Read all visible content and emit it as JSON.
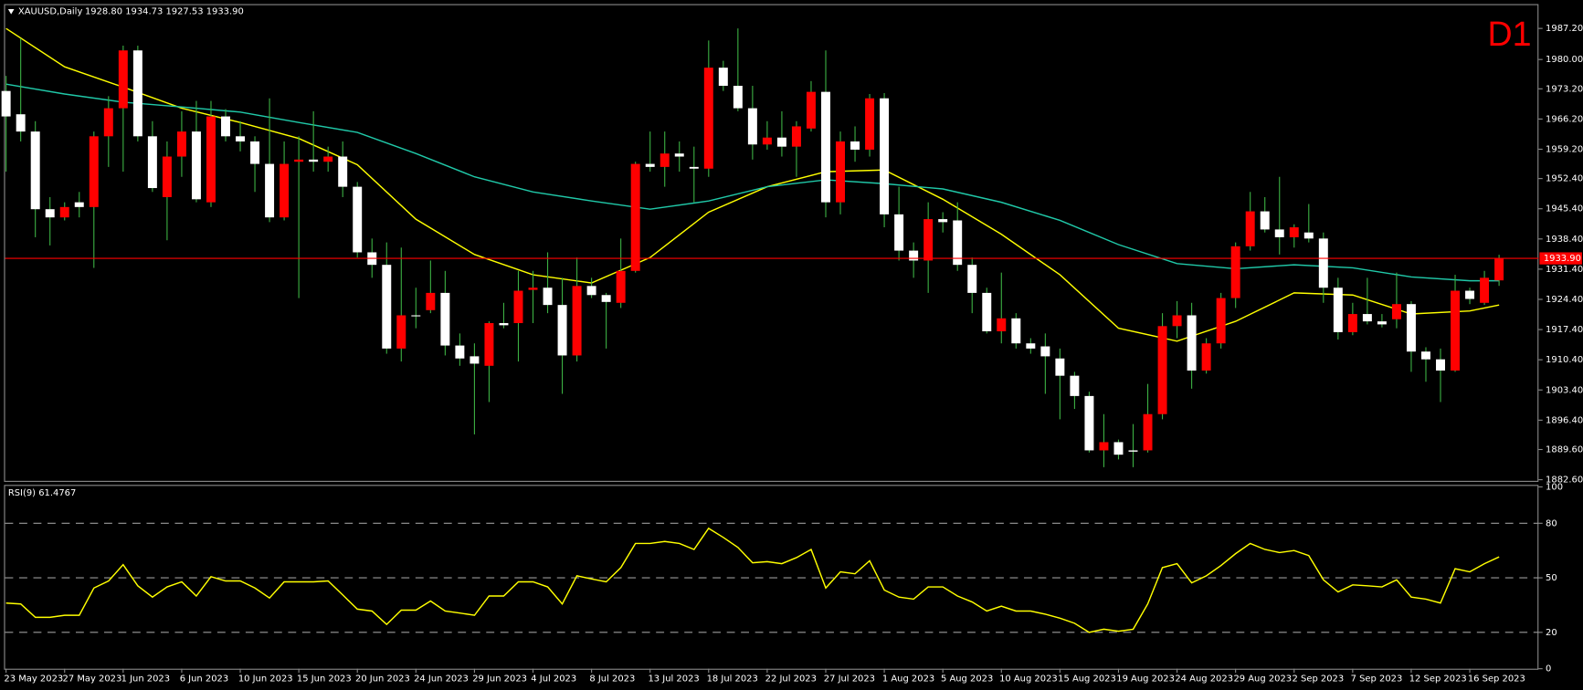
{
  "chart_data": [
    {
      "type": "candlestick",
      "title": "XAUUSD,Daily",
      "subtitle": "1928.80 1934.73 1927.53 1933.90",
      "timeframe": "D1",
      "categories": [
        "23 May 2023",
        null,
        null,
        null,
        "27 May 2023",
        null,
        null,
        null,
        "1 Jun 2023",
        null,
        null,
        null,
        "6 Jun 2023",
        null,
        null,
        null,
        "10 Jun 2023",
        null,
        null,
        null,
        "15 Jun 2023",
        null,
        null,
        null,
        "20 Jun 2023",
        null,
        null,
        null,
        "24 Jun 2023",
        null,
        null,
        null,
        "29 Jun 2023",
        null,
        null,
        null,
        "4 Jul 2023",
        null,
        null,
        null,
        "8 Jul 2023",
        null,
        null,
        null,
        "13 Jul 2023",
        null,
        null,
        null,
        "18 Jul 2023",
        null,
        null,
        null,
        "22 Jul 2023",
        null,
        null,
        null,
        "27 Jul 2023",
        null,
        null,
        null,
        "1 Aug 2023",
        null,
        null,
        null,
        "5 Aug 2023",
        null,
        null,
        null,
        "10 Aug 2023",
        null,
        null,
        null,
        "15 Aug 2023",
        null,
        null,
        null,
        "19 Aug 2023",
        null,
        null,
        null,
        "24 Aug 2023",
        null,
        null,
        null,
        "29 Aug 2023",
        null,
        null,
        null,
        "2 Sep 2023",
        null,
        null,
        null,
        "7 Sep 2023",
        null,
        null,
        null,
        "12 Sep 2023",
        null,
        null,
        null,
        "16 Sep 2023",
        null,
        null
      ],
      "open": [
        1972.7,
        1967.3,
        1963.3,
        1945.3,
        1943.4,
        1946.9,
        1945.8,
        1962.2,
        1968.7,
        1982.1,
        1962.2,
        1948.1,
        1957.5,
        1963.3,
        1946.9,
        1966.8,
        1962.2,
        1961.0,
        1955.8,
        1943.4,
        1956.3,
        1956.8,
        1956.3,
        1957.5,
        1950.5,
        1935.3,
        1932.4,
        1913.0,
        1920.7,
        1921.9,
        1925.9,
        1913.7,
        1911.2,
        1909.0,
        1918.9,
        1918.9,
        1926.6,
        1927.1,
        1923.1,
        1911.4,
        1927.5,
        1925.4,
        1923.6,
        1931.0,
        1955.8,
        1955.1,
        1958.2,
        1955.1,
        1954.7,
        1978.1,
        1973.9,
        1968.7,
        1960.3,
        1961.9,
        1959.8,
        1964.0,
        1972.5,
        1946.9,
        1961.0,
        1959.1,
        1971.0,
        1944.1,
        1935.7,
        1933.4,
        1943.0,
        1942.7,
        1932.4,
        1925.9,
        1917.0,
        1920.0,
        1914.2,
        1913.5,
        1910.7,
        1906.7,
        1902.0,
        1889.4,
        1891.3,
        1889.4,
        1889.4,
        1897.8,
        1918.2,
        1920.7,
        1907.9,
        1914.2,
        1924.7,
        1936.7,
        1944.8,
        1940.6,
        1938.8,
        1939.9,
        1938.5,
        1927.1,
        1916.8,
        1921.0,
        1919.3,
        1919.8,
        1923.3,
        1912.3,
        1910.5,
        1907.9,
        1926.4,
        1923.6,
        1928.8
      ],
      "high": [
        1976.2,
        1984.9,
        1965.7,
        1948.1,
        1946.9,
        1949.3,
        1963.3,
        1971.5,
        1983.2,
        1983.2,
        1965.7,
        1961.0,
        1968.0,
        1970.4,
        1970.4,
        1968.5,
        1965.7,
        1962.2,
        1971.0,
        1961.0,
        1962.2,
        1968.0,
        1959.8,
        1961.0,
        1951.6,
        1938.5,
        1937.6,
        1936.4,
        1927.1,
        1933.4,
        1931.0,
        1916.5,
        1914.2,
        1919.3,
        1923.6,
        1931.0,
        1931.0,
        1935.3,
        1929.4,
        1934.1,
        1929.4,
        1925.9,
        1938.5,
        1956.3,
        1963.3,
        1963.3,
        1961.0,
        1959.8,
        1984.4,
        1979.7,
        1987.2,
        1973.9,
        1965.7,
        1968.0,
        1965.7,
        1975.0,
        1982.1,
        1963.3,
        1964.5,
        1972.0,
        1972.2,
        1950.5,
        1937.6,
        1946.9,
        1944.6,
        1946.9,
        1934.1,
        1927.1,
        1930.6,
        1921.2,
        1915.4,
        1916.5,
        1913.0,
        1907.6,
        1903.0,
        1897.8,
        1891.9,
        1895.5,
        1904.8,
        1921.2,
        1924.0,
        1923.6,
        1915.4,
        1925.9,
        1937.6,
        1949.3,
        1948.1,
        1952.8,
        1941.8,
        1946.5,
        1939.9,
        1929.4,
        1923.6,
        1929.4,
        1921.0,
        1930.6,
        1924.0,
        1913.3,
        1913.0,
        1930.1,
        1927.1,
        1931.0,
        1934.73
      ],
      "low": [
        1954.0,
        1961.0,
        1938.8,
        1936.9,
        1942.7,
        1943.4,
        1931.7,
        1955.1,
        1954.0,
        1961.0,
        1949.3,
        1938.1,
        1952.8,
        1946.9,
        1945.8,
        1961.0,
        1958.7,
        1949.3,
        1942.3,
        1942.7,
        1924.7,
        1954.0,
        1954.0,
        1948.1,
        1934.1,
        1929.4,
        1911.8,
        1910.0,
        1917.7,
        1921.2,
        1911.4,
        1909.0,
        1893.1,
        1900.6,
        1917.7,
        1910.0,
        1918.9,
        1921.2,
        1902.5,
        1910.0,
        1924.7,
        1913.0,
        1922.4,
        1930.6,
        1954.0,
        1950.5,
        1954.0,
        1946.9,
        1952.8,
        1972.7,
        1968.0,
        1956.8,
        1959.1,
        1957.5,
        1952.8,
        1963.3,
        1943.4,
        1944.1,
        1956.3,
        1957.5,
        1941.1,
        1933.4,
        1929.4,
        1925.9,
        1939.9,
        1931.0,
        1921.2,
        1916.5,
        1914.2,
        1913.0,
        1911.8,
        1902.5,
        1896.6,
        1899.0,
        1888.9,
        1885.5,
        1887.3,
        1885.5,
        1888.9,
        1896.6,
        1915.4,
        1903.7,
        1907.2,
        1913.0,
        1922.4,
        1935.7,
        1939.9,
        1934.8,
        1936.4,
        1937.6,
        1923.6,
        1915.1,
        1916.1,
        1918.6,
        1917.9,
        1917.7,
        1907.6,
        1905.3,
        1900.6,
        1907.6,
        1923.3,
        1923.1,
        1927.53
      ],
      "close": [
        1966.8,
        1963.3,
        1945.3,
        1943.4,
        1945.8,
        1945.8,
        1962.2,
        1968.7,
        1982.1,
        1962.2,
        1950.2,
        1957.5,
        1963.3,
        1947.6,
        1966.8,
        1962.2,
        1961.0,
        1955.8,
        1943.4,
        1955.8,
        1956.8,
        1956.3,
        1957.5,
        1950.5,
        1935.3,
        1932.4,
        1913.0,
        1920.7,
        1920.5,
        1925.9,
        1913.7,
        1910.7,
        1909.5,
        1918.9,
        1918.4,
        1926.4,
        1927.1,
        1923.1,
        1911.4,
        1927.5,
        1925.4,
        1923.8,
        1931.0,
        1955.8,
        1955.1,
        1958.2,
        1957.5,
        1954.7,
        1978.1,
        1973.9,
        1968.7,
        1960.3,
        1961.9,
        1959.8,
        1964.5,
        1972.5,
        1946.9,
        1961.0,
        1959.1,
        1971.0,
        1944.1,
        1935.7,
        1933.4,
        1943.0,
        1942.3,
        1932.4,
        1925.9,
        1917.0,
        1920.0,
        1914.2,
        1913.0,
        1911.2,
        1906.7,
        1902.0,
        1889.4,
        1891.3,
        1888.4,
        1889.1,
        1897.8,
        1918.2,
        1920.7,
        1907.9,
        1914.2,
        1924.7,
        1936.7,
        1944.8,
        1940.6,
        1938.8,
        1941.1,
        1938.5,
        1927.1,
        1916.8,
        1921.0,
        1919.3,
        1918.6,
        1923.3,
        1912.3,
        1910.5,
        1907.9,
        1926.4,
        1924.5,
        1929.4,
        1933.9
      ],
      "up_color": "#ff0000",
      "down_color": "#ffffff",
      "wick_color": "#3cb043",
      "moving_averages": [
        {
          "color": "#ffff00",
          "x": [
            0,
            4,
            8,
            12,
            16,
            20,
            24,
            28,
            32,
            36,
            40,
            44,
            48,
            52,
            56,
            60,
            64,
            68,
            72,
            76,
            80,
            84,
            88,
            92,
            96,
            100,
            102
          ],
          "values": [
            1987.2,
            1978.3,
            1973.6,
            1968.7,
            1965.4,
            1961.7,
            1955.6,
            1943.0,
            1934.8,
            1930.1,
            1928.2,
            1934.1,
            1944.6,
            1950.5,
            1954.0,
            1954.4,
            1947.6,
            1939.5,
            1930.1,
            1917.7,
            1914.7,
            1919.3,
            1925.9,
            1925.4,
            1921.0,
            1921.7,
            1923.1
          ]
        },
        {
          "color": "#20c8a8",
          "x": [
            0,
            4,
            8,
            12,
            16,
            20,
            24,
            28,
            32,
            36,
            40,
            44,
            48,
            52,
            56,
            60,
            64,
            68,
            72,
            76,
            80,
            84,
            88,
            92,
            96,
            100,
            102
          ],
          "values": [
            1974.3,
            1972.0,
            1970.1,
            1969.0,
            1967.8,
            1965.4,
            1963.1,
            1958.2,
            1952.8,
            1949.3,
            1947.2,
            1945.3,
            1947.2,
            1950.5,
            1952.1,
            1951.2,
            1950.0,
            1946.9,
            1942.7,
            1937.1,
            1932.7,
            1931.5,
            1932.4,
            1931.7,
            1929.6,
            1928.7,
            1928.7
          ]
        }
      ],
      "last_price": {
        "value": 1933.9,
        "label": "1933.90"
      },
      "ylim": [
        1882.1,
        1992.6
      ],
      "yticks": [
        {
          "value": 1987.2,
          "label": "1987.20"
        },
        {
          "value": 1980.0,
          "label": "1980.00"
        },
        {
          "value": 1973.2,
          "label": "1973.20"
        },
        {
          "value": 1966.2,
          "label": "1966.20"
        },
        {
          "value": 1959.2,
          "label": "1959.20"
        },
        {
          "value": 1952.4,
          "label": "1952.40"
        },
        {
          "value": 1945.4,
          "label": "1945.40"
        },
        {
          "value": 1938.4,
          "label": "1938.40"
        },
        {
          "value": 1931.4,
          "label": "1931.40"
        },
        {
          "value": 1924.4,
          "label": "1924.40"
        },
        {
          "value": 1917.4,
          "label": "1917.40"
        },
        {
          "value": 1910.4,
          "label": "1910.40"
        },
        {
          "value": 1903.4,
          "label": "1903.40"
        },
        {
          "value": 1896.4,
          "label": "1896.40"
        },
        {
          "value": 1889.6,
          "label": "1889.60"
        },
        {
          "value": 1882.6,
          "label": "1882.60"
        }
      ]
    },
    {
      "type": "line",
      "title": "RSI(9) 61.4767",
      "color": "#ffff00",
      "values": [
        36.1,
        35.6,
        28.3,
        28.3,
        29.4,
        29.4,
        44.4,
        48.3,
        57.2,
        45.6,
        39.4,
        45.0,
        47.8,
        40.0,
        50.6,
        48.3,
        48.3,
        44.4,
        38.9,
        47.8,
        47.8,
        47.8,
        48.3,
        40.6,
        32.8,
        31.7,
        24.4,
        32.2,
        32.2,
        37.2,
        31.7,
        30.6,
        29.4,
        40.0,
        40.0,
        47.8,
        47.8,
        45.0,
        35.6,
        51.1,
        49.4,
        47.8,
        55.6,
        68.9,
        68.9,
        70.0,
        68.9,
        65.6,
        77.2,
        72.2,
        66.7,
        58.3,
        58.9,
        57.8,
        61.1,
        65.6,
        44.4,
        53.3,
        52.2,
        59.4,
        43.3,
        39.4,
        38.3,
        45.0,
        45.0,
        40.0,
        36.7,
        31.7,
        34.4,
        31.7,
        31.7,
        30.0,
        27.8,
        25.0,
        20.0,
        21.7,
        20.6,
        21.7,
        35.6,
        55.6,
        57.8,
        47.2,
        51.1,
        56.7,
        63.3,
        68.9,
        65.6,
        63.9,
        65.0,
        62.2,
        48.9,
        42.2,
        46.1,
        45.6,
        45.0,
        48.9,
        39.4,
        38.3,
        36.1,
        55.0,
        53.3,
        57.8,
        61.4767
      ],
      "ylim": [
        0,
        100
      ],
      "yticks": [
        100,
        80,
        50,
        20,
        0
      ]
    }
  ]
}
